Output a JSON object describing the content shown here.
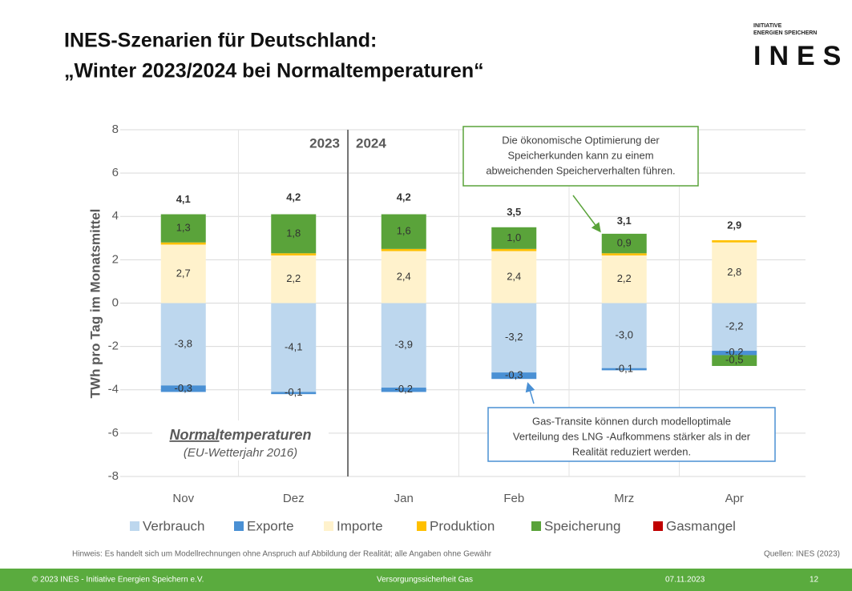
{
  "slide": {
    "title_lines": [
      "INES-Szenarien für Deutschland:",
      "„Winter 2023/2024 bei Normaltemperaturen“"
    ],
    "logo": {
      "line1": "INITIATIVE",
      "line2": "ENERGIEN SPEICHERN",
      "name": "INES"
    },
    "note": "Hinweis: Es handelt sich um Modellrechnungen ohne Anspruch auf Abbildung der Realität; alle Angaben ohne Gewähr",
    "sources": "Quellen: INES (2023)",
    "footer": {
      "left": "© 2023 INES - Initiative Energien Speichern e.V.",
      "center": "Versorgungssicherheit Gas",
      "date": "07.11.2023",
      "page": "12"
    }
  },
  "chart_data": {
    "type": "stacked_bar",
    "y_label": "TWh pro Tag im Monatsmittel",
    "categories": [
      "Nov",
      "Dez",
      "Jan",
      "Feb",
      "Mrz",
      "Apr"
    ],
    "ylim": [
      -8,
      8
    ],
    "yticks": [
      -8,
      -6,
      -4,
      -2,
      0,
      2,
      4,
      6,
      8
    ],
    "grid": true,
    "legend": "bottom",
    "series": [
      {
        "name": "Verbrauch",
        "color": "#bdd7ee",
        "values": [
          -3.8,
          -4.1,
          -3.9,
          -3.2,
          -3.0,
          -2.2
        ],
        "value_labels": [
          "-3,8",
          "-4,1",
          "-3,9",
          "-3,2",
          "-3,0",
          "-2,2"
        ]
      },
      {
        "name": "Exporte",
        "color": "#4a90d4",
        "values": [
          -0.3,
          -0.1,
          -0.2,
          -0.3,
          -0.1,
          -0.2
        ],
        "value_labels": [
          "-0,3",
          "-0,1",
          "-0,2",
          "-0,3",
          "-0,1",
          "-0,2"
        ]
      },
      {
        "name": "Importe",
        "color": "#fff2cc",
        "values": [
          2.7,
          2.2,
          2.4,
          2.4,
          2.2,
          2.8
        ],
        "value_labels": [
          "2,7",
          "2,2",
          "2,4",
          "2,4",
          "2,2",
          "2,8"
        ]
      },
      {
        "name": "Produktion",
        "color": "#ffc000",
        "values": [
          0.1,
          0.1,
          0.1,
          0.1,
          0.1,
          0.1
        ]
      },
      {
        "name": "Speicherung",
        "color": "#5aa33a",
        "values": [
          1.3,
          1.8,
          1.6,
          1.0,
          0.9,
          -0.5
        ],
        "value_labels": [
          "1,3",
          "1,8",
          "1,6",
          "1,0",
          "0,9",
          "-0,5"
        ]
      },
      {
        "name": "Gasmangel",
        "color": "#c00000",
        "values": [
          0,
          0,
          0,
          0,
          0,
          0
        ]
      }
    ],
    "totals": [
      4.1,
      4.2,
      4.2,
      3.5,
      3.1,
      2.9
    ],
    "total_labels": [
      "4,1",
      "4,2",
      "4,2",
      "3,5",
      "3,1",
      "2,9"
    ],
    "years": [
      "2023",
      "2024"
    ],
    "scenario": {
      "underlined": "Normal",
      "rest": "temperaturen",
      "sub": "(EU-Wetterjahr 2016)"
    },
    "annotations": [
      {
        "lines": [
          "Die ökonomische Optimierung der",
          "Speicherkunden kann zu einem",
          "abweichenden Speicherverhalten führen."
        ]
      },
      {
        "lines": [
          "Gas-Transite können durch modelloptimale",
          "Verteilung des LNG -Aufkommens stärker als in der",
          "Realität reduziert werden."
        ]
      }
    ]
  }
}
